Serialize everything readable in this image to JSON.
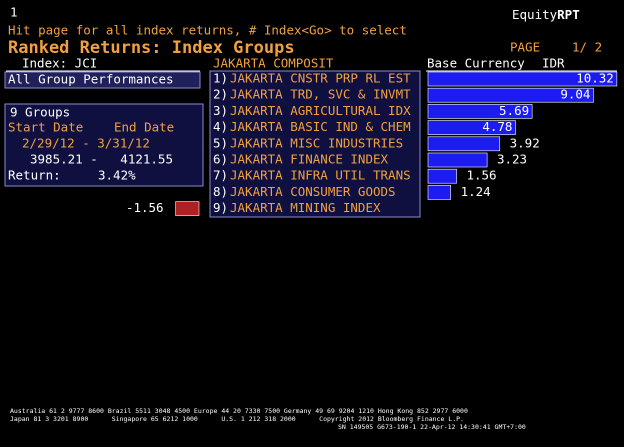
{
  "header": {
    "page_num": "1",
    "brand_a": "Equity",
    "brand_b": "RPT",
    "hint": "Hit page for all index returns, # Index<Go> to select",
    "title": "Ranked Returns: Index Groups",
    "page_label": "PAGE",
    "page_of": "1/ 2"
  },
  "index_label": "Index: JCI",
  "index_name": "JAKARTA COMPOSIT",
  "currency_label": "Base Currency",
  "currency": "IDR",
  "all_groups": "All Group Performances",
  "summary": {
    "groups": "9 Groups",
    "start_label": "Start Date",
    "end_label": "End Date",
    "dates": "2/29/12 - 3/31/12",
    "levels": "3985.21 -   4121.55",
    "return_label": "Return:",
    "return_value": "3.42%"
  },
  "ranking": {
    "numbers": [
      "1)",
      "2)",
      "3)",
      "4)",
      "5)",
      "6)",
      "7)",
      "8)",
      "9)"
    ],
    "names": [
      "JAKARTA CNSTR PRP RL EST",
      "JAKARTA TRD, SVC & INVMT",
      "JAKARTA AGRICULTURAL IDX",
      "JAKARTA BASIC IND & CHEM",
      "JAKARTA MISC INDUSTRIES",
      "JAKARTA FINANCE INDEX",
      "JAKARTA INFRA UTIL TRANS",
      "JAKARTA CONSUMER GOODS",
      "JAKARTA MINING INDEX"
    ],
    "values": [
      10.32,
      9.04,
      5.69,
      4.78,
      3.92,
      3.23,
      1.56,
      1.24,
      -1.56
    ]
  },
  "footer": [
    "Australia 61 2 9777 8600 Brazil 5511 3048 4500 Europe 44 20 7330 7500 Germany 49 69 9204 1210 Hong Kong 852 2977 6000",
    "Japan 81 3 3201 8900      Singapore 65 6212 1000      U.S. 1 212 318 2000      Copyright 2012 Bloomberg Finance L.P.",
    "SN 149505 G673-190-1 22-Apr-12 14:30:41 GMT+7:00"
  ]
}
